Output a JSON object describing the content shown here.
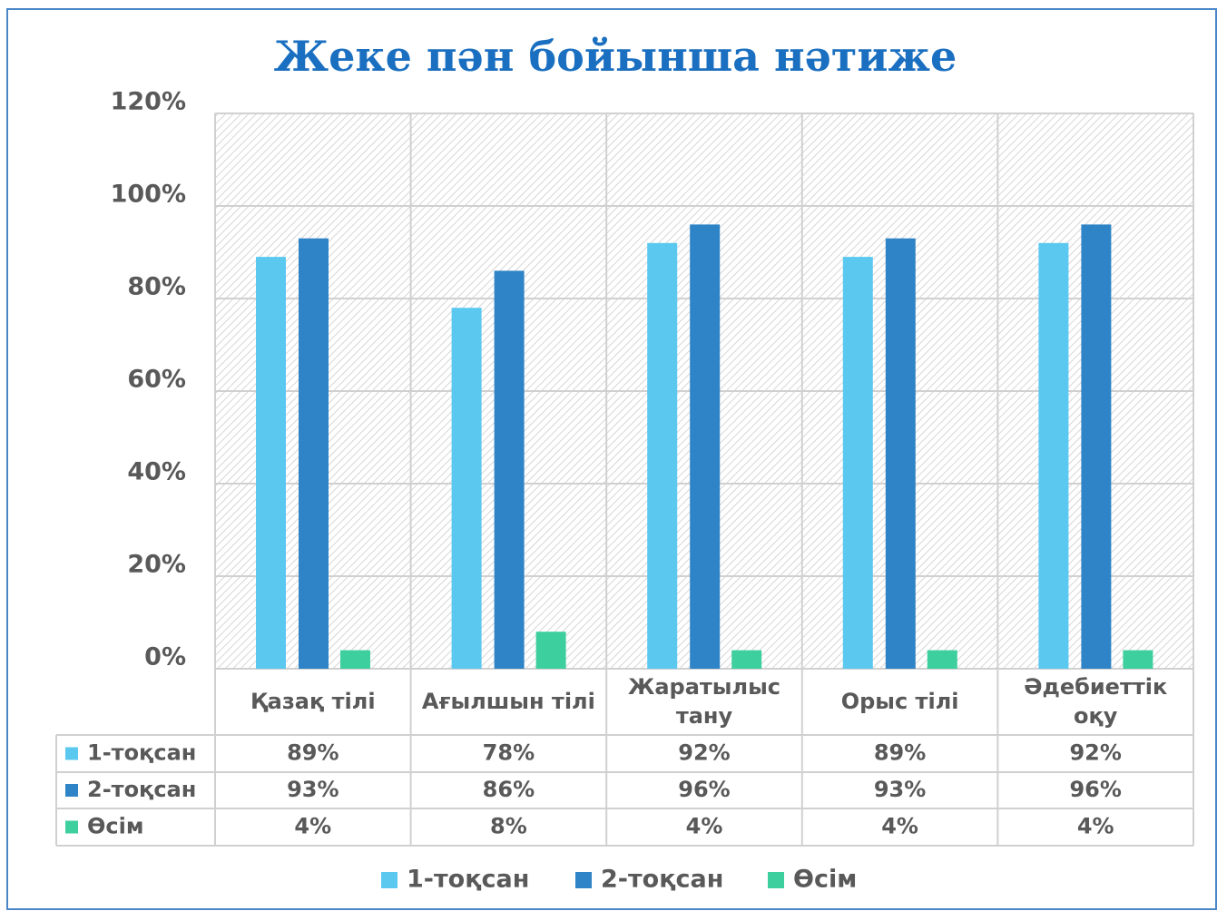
{
  "chart_data": {
    "type": "bar",
    "title": "Жеке пән бойынша нәтиже",
    "categories": [
      "Қазақ тілі",
      "Ағылшын тілі",
      "Жаратылыс тану",
      "Орыс тілі",
      "Әдебиеттік оқу"
    ],
    "ylim": [
      0,
      120
    ],
    "yticks": [
      {
        "value": 0,
        "label": "0%"
      },
      {
        "value": 20,
        "label": "20%"
      },
      {
        "value": 40,
        "label": "40%"
      },
      {
        "value": 60,
        "label": "60%"
      },
      {
        "value": 80,
        "label": "80%"
      },
      {
        "value": 100,
        "label": "100%"
      },
      {
        "value": 120,
        "label": "120%"
      }
    ],
    "grid": true,
    "legend": "bottom",
    "series": [
      {
        "name": "1-тоқсан",
        "color": "#5bc8f0",
        "values": [
          89,
          78,
          92,
          89,
          92
        ],
        "value_labels": [
          "89%",
          "78%",
          "92%",
          "89%",
          "92%"
        ]
      },
      {
        "name": "2-тоқсан",
        "color": "#2e84c6",
        "values": [
          93,
          86,
          96,
          93,
          96
        ],
        "value_labels": [
          "93%",
          "86%",
          "96%",
          "93%",
          "96%"
        ]
      },
      {
        "name": "Өсім",
        "color": "#3ecf9e",
        "values": [
          4,
          8,
          4,
          4,
          4
        ],
        "value_labels": [
          "4%",
          "8%",
          "4%",
          "4%",
          "4%"
        ]
      }
    ]
  }
}
